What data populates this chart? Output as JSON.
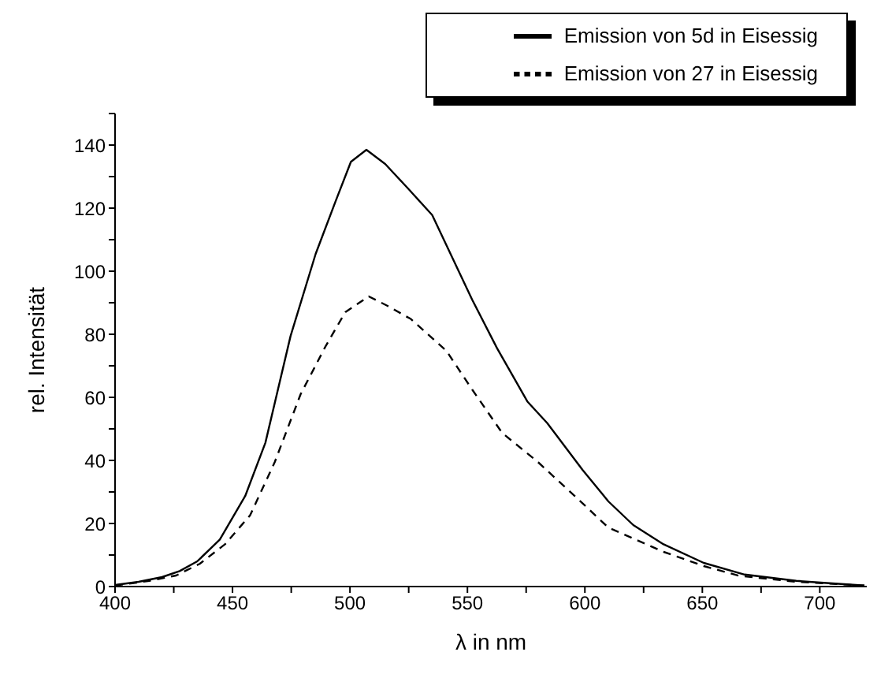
{
  "chart_data": {
    "type": "line",
    "xlabel": "λ in nm",
    "ylabel": "rel. Intensität",
    "xlim": [
      400,
      720
    ],
    "ylim": [
      0,
      150
    ],
    "xticks": [
      400,
      {
        "value": 425,
        "label": null
      },
      450,
      {
        "value": 475,
        "label": null
      },
      500,
      {
        "value": 525,
        "label": null
      },
      550,
      {
        "value": 575,
        "label": null
      },
      600,
      {
        "value": 625,
        "label": null
      },
      650,
      {
        "value": 675,
        "label": null
      },
      700
    ],
    "yticks": [
      0,
      {
        "value": 10,
        "label": null
      },
      20,
      {
        "value": 30,
        "label": null
      },
      40,
      {
        "value": 50,
        "label": null
      },
      60,
      {
        "value": 70,
        "label": null
      },
      80,
      {
        "value": 90,
        "label": null
      },
      100,
      {
        "value": 110,
        "label": null
      },
      120,
      {
        "value": 130,
        "label": null
      },
      140,
      {
        "value": 150,
        "label": null
      }
    ],
    "grid": false,
    "legend": "top right",
    "marker": "none",
    "series": [
      {
        "name": "Emission von 5d in Eisessig",
        "color": "#000000",
        "line_style": "solid",
        "x": [
          400,
          410,
          420,
          427.5,
          435,
          444.6,
          455.4,
          464,
          474.7,
          485.4,
          494,
          500.4,
          507,
          515,
          525,
          535,
          552,
          562.6,
          575.5,
          584,
          599,
          610,
          620.6,
          633.5,
          650.6,
          668,
          690,
          719
        ],
        "values": [
          0.5,
          1.5,
          3,
          4.9,
          8,
          14.9,
          28.7,
          45.6,
          79.4,
          105.5,
          122.4,
          134.7,
          138.5,
          134,
          126,
          117.8,
          91,
          75.6,
          58.7,
          51.8,
          37,
          27,
          19.5,
          13.4,
          7.5,
          3.8,
          1.8,
          0.3
        ]
      },
      {
        "name": "Emission von 27 in Eisessig",
        "color": "#000000",
        "line_style": "dashed",
        "x": [
          400,
          414.6,
          426,
          436,
          446.8,
          457.5,
          468,
          479,
          489.7,
          498,
          508,
          516,
          526,
          541,
          552,
          564.8,
          580,
          599,
          610,
          633.5,
          650.6,
          665.7,
          690,
          719
        ],
        "values": [
          0.3,
          1.8,
          3.5,
          7.2,
          13.4,
          22.6,
          39.5,
          61,
          76.3,
          87,
          92,
          89,
          84.8,
          74.8,
          62.5,
          48.7,
          39.5,
          26.4,
          18.7,
          11,
          6.5,
          3.4,
          1.5,
          0.3
        ]
      }
    ]
  }
}
